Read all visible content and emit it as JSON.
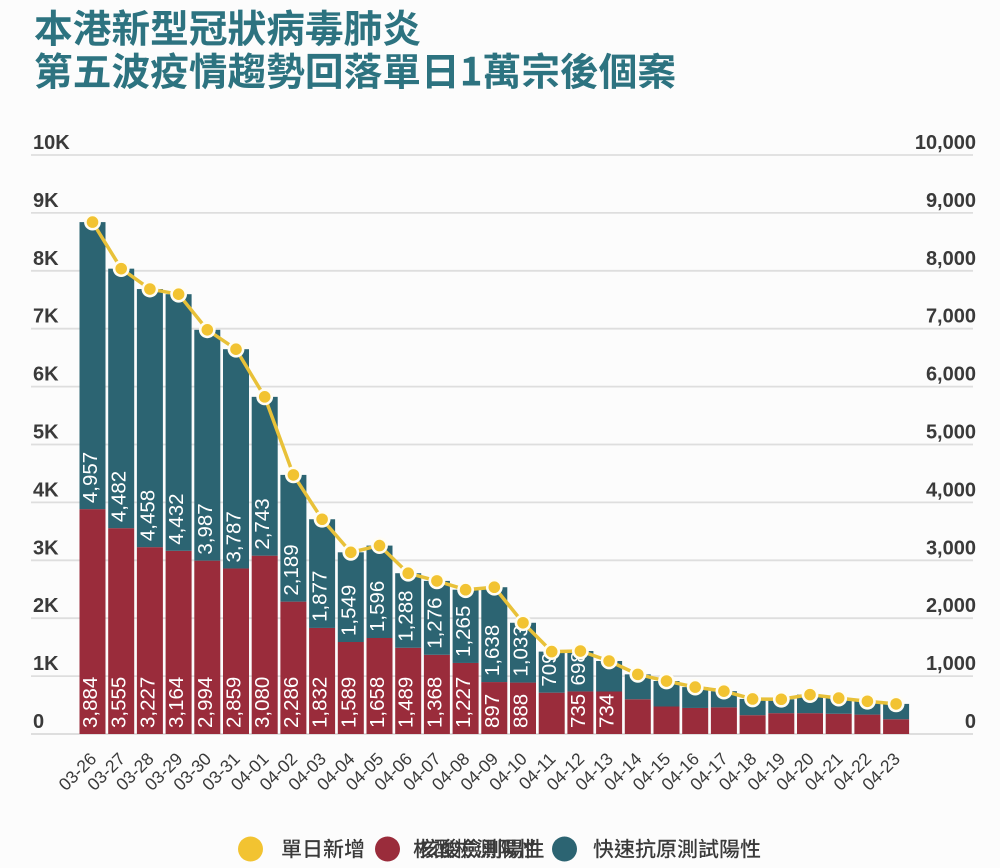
{
  "title": {
    "line1": "本港新型冠狀病毒肺炎",
    "line2": "第五波疫情趨勢回落單日1萬宗後個案",
    "color": "#2d7380"
  },
  "y_axis_left": {
    "ticks": [
      "0",
      "1K",
      "2K",
      "3K",
      "4K",
      "5K",
      "6K",
      "7K",
      "8K",
      "9K",
      "10K"
    ]
  },
  "y_axis_right": {
    "ticks": [
      "0",
      "1,000",
      "2,000",
      "3,000",
      "4,000",
      "5,000",
      "6,000",
      "7,000",
      "8,000",
      "9,000",
      "10,000"
    ]
  },
  "legend": {
    "items": [
      {
        "label": "單日新增",
        "color": "#f2c331",
        "marker": "circle"
      },
      {
        "label": "核酸檢測陽性",
        "color": "#9a2c3b",
        "marker": "circle"
      },
      {
        "label": "快速抗原測試陽性",
        "color": "#2c6472",
        "marker": "circle"
      }
    ]
  },
  "chart_data": {
    "type": "bar",
    "stacked": true,
    "title": "本港新型冠狀病毒肺炎 第五波疫情趨勢回落單日1萬宗後個案",
    "categories": [
      "03-26",
      "03-27",
      "03-28",
      "03-29",
      "03-30",
      "03-31",
      "04-01",
      "04-02",
      "04-03",
      "04-04",
      "04-05",
      "04-06",
      "04-07",
      "04-08",
      "04-09",
      "04-10",
      "04-11",
      "04-12",
      "04-13",
      "04-14",
      "04-15",
      "04-16",
      "04-17",
      "04-18",
      "04-19",
      "04-20",
      "04-21",
      "04-22",
      "04-23"
    ],
    "series": [
      {
        "name": "核酸檢測陽性",
        "color": "#9a2c3b",
        "values": [
          3884,
          3555,
          3227,
          3164,
          2994,
          2859,
          3080,
          2286,
          1832,
          1589,
          1658,
          1489,
          1368,
          1227,
          897,
          888,
          714,
          735,
          734,
          600,
          475,
          450,
          460,
          325,
          360,
          360,
          350,
          335,
          255
        ],
        "labels": [
          "3,884",
          "3,555",
          "3,227",
          "3,164",
          "2,994",
          "2,859",
          "3,080",
          "2,286",
          "1,832",
          "1,589",
          "1,658",
          "1,489",
          "1,368",
          "1,227",
          "897",
          "888",
          null,
          "735",
          "734",
          null,
          null,
          null,
          null,
          null,
          null,
          null,
          null,
          null,
          null
        ]
      },
      {
        "name": "快速抗原測試陽性",
        "color": "#2c6472",
        "values": [
          4957,
          4482,
          4458,
          4432,
          3987,
          3787,
          2743,
          2189,
          1877,
          1549,
          1596,
          1288,
          1276,
          1265,
          1638,
          1033,
          709,
          698,
          527,
          430,
          440,
          360,
          280,
          280,
          240,
          320,
          270,
          230,
          265
        ],
        "labels": [
          "4,957",
          "4,482",
          "4,458",
          "4,432",
          "3,987",
          "3,787",
          "2,743",
          "2,189",
          "1,877",
          "1,549",
          "1,596",
          "1,288",
          "1,276",
          "1,265",
          "1,638",
          "1,033",
          "709",
          "698",
          null,
          null,
          null,
          null,
          null,
          null,
          null,
          null,
          null,
          null,
          null
        ]
      }
    ],
    "line": {
      "name": "單日新增",
      "color": "#f2c331",
      "values": [
        8841,
        8037,
        7685,
        7596,
        6981,
        6646,
        5823,
        4475,
        3709,
        3138,
        3254,
        2777,
        2644,
        2492,
        2535,
        1921,
        1423,
        1433,
        1261,
        1030,
        915,
        810,
        740,
        605,
        600,
        680,
        620,
        565,
        520
      ]
    },
    "ylim": [
      0,
      10000
    ],
    "y_tick_step": 1000,
    "grid": true,
    "legend_position": "bottom"
  },
  "colors": {
    "background": "#fcfcfc",
    "gridline": "#dedede",
    "axis_text": "#3a3a3a",
    "bar_label_text": "#ffffff",
    "pcr_bar": "#9a2c3b",
    "rat_bar": "#2c6472",
    "daily_line": "#e8c139",
    "daily_dot": "#f2c331",
    "dot_ring": "#fffdf4",
    "title": "#2d7380"
  }
}
